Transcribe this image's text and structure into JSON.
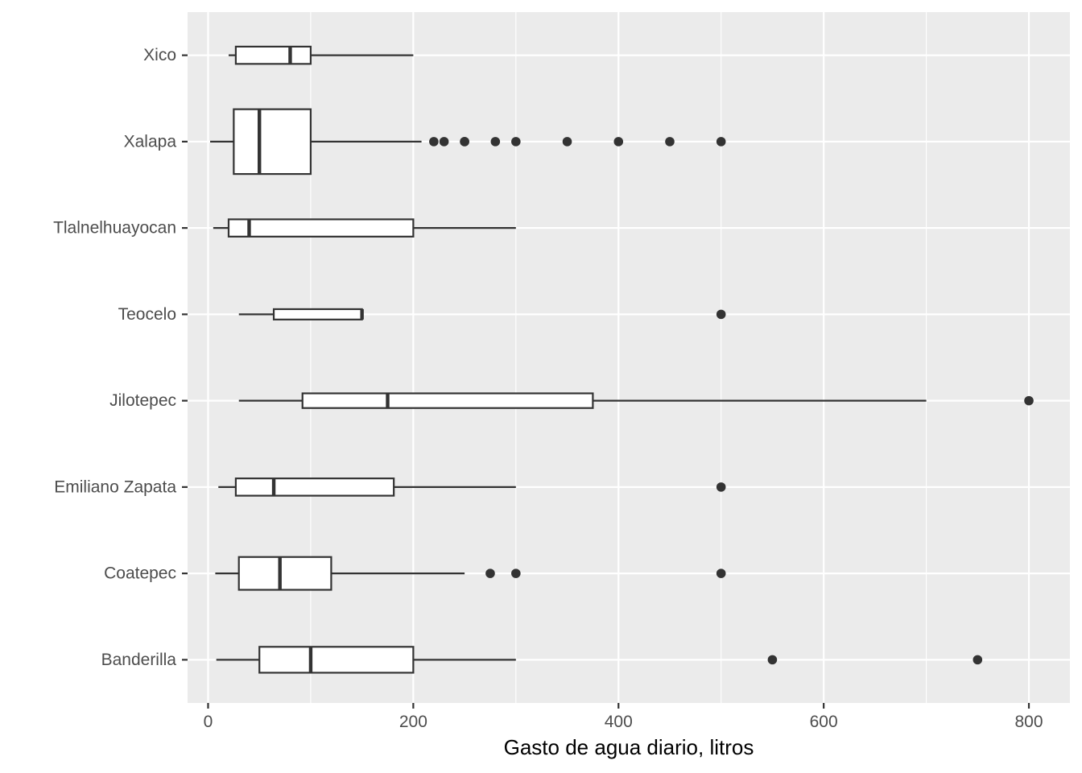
{
  "chart_data": {
    "type": "boxplot",
    "orientation": "horizontal",
    "title": "",
    "xlabel": "Gasto de agua diario, litros",
    "ylabel": "",
    "xlim": [
      -20,
      840
    ],
    "x_ticks": [
      0,
      200,
      400,
      600,
      800
    ],
    "x_minor_ticks": [
      100,
      300,
      500,
      700
    ],
    "grid": true,
    "legend": "none",
    "colors": {
      "panel_background": "#ebebeb",
      "grid_major": "#ffffff",
      "box_fill": "#ffffff",
      "box_stroke": "#333333",
      "outlier": "#333333",
      "tick_text": "#4d4d4d",
      "axis_title": "#000000"
    },
    "categories": [
      "Banderilla",
      "Coatepec",
      "Emiliano Zapata",
      "Jilotepec",
      "Teocelo",
      "Tlalnelhuayocan",
      "Xalapa",
      "Xico"
    ],
    "boxes": [
      {
        "category": "Banderilla",
        "min": 8,
        "q1": 50,
        "median": 100,
        "q3": 200,
        "max": 300,
        "outliers": [
          550,
          750
        ]
      },
      {
        "category": "Coatepec",
        "min": 7,
        "q1": 30,
        "median": 70,
        "q3": 120,
        "max": 250,
        "outliers": [
          275,
          300,
          500
        ]
      },
      {
        "category": "Emiliano Zapata",
        "min": 10,
        "q1": 27,
        "median": 64,
        "q3": 181,
        "max": 300,
        "outliers": [
          500
        ]
      },
      {
        "category": "Jilotepec",
        "min": 30,
        "q1": 92,
        "median": 175,
        "q3": 375,
        "max": 700,
        "outliers": [
          800
        ]
      },
      {
        "category": "Teocelo",
        "min": 30,
        "q1": 64,
        "median": 150,
        "q3": 150,
        "max": 150,
        "outliers": [
          500
        ]
      },
      {
        "category": "Tlalnelhuayocan",
        "min": 5,
        "q1": 20,
        "median": 40,
        "q3": 200,
        "max": 300,
        "outliers": []
      },
      {
        "category": "Xalapa",
        "min": 2,
        "q1": 25,
        "median": 50,
        "q3": 100,
        "max": 208,
        "outliers": [
          220,
          230,
          250,
          250,
          280,
          300,
          350,
          400,
          450,
          500
        ]
      },
      {
        "category": "Xico",
        "min": 20,
        "q1": 27,
        "median": 80,
        "q3": 100,
        "max": 200,
        "outliers": []
      }
    ],
    "box_widths": {
      "Banderilla": 0.3,
      "Coatepec": 0.38,
      "Emiliano Zapata": 0.2,
      "Jilotepec": 0.17,
      "Teocelo": 0.12,
      "Tlalnelhuayocan": 0.2,
      "Xalapa": 0.75,
      "Xico": 0.2
    }
  }
}
